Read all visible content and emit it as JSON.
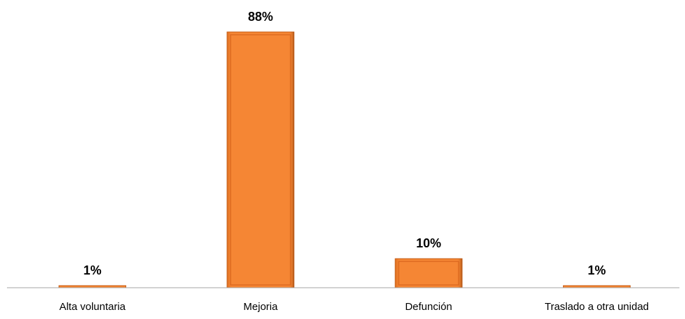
{
  "chart_data": {
    "type": "bar",
    "categories": [
      "Alta voluntaria",
      "Mejoria",
      "Defunción",
      "Traslado a otra unidad"
    ],
    "values": [
      1,
      88,
      10,
      1
    ],
    "value_labels": [
      "1%",
      "88%",
      "10%",
      "1%"
    ],
    "title": "",
    "xlabel": "",
    "ylabel": "",
    "ylim": [
      0,
      88
    ],
    "grid": false,
    "legend": "none",
    "bar_color": "#F58634",
    "bar_edge_color": "#C55A11",
    "axis_color": "#A6A6A6",
    "text_color": "#000000"
  }
}
